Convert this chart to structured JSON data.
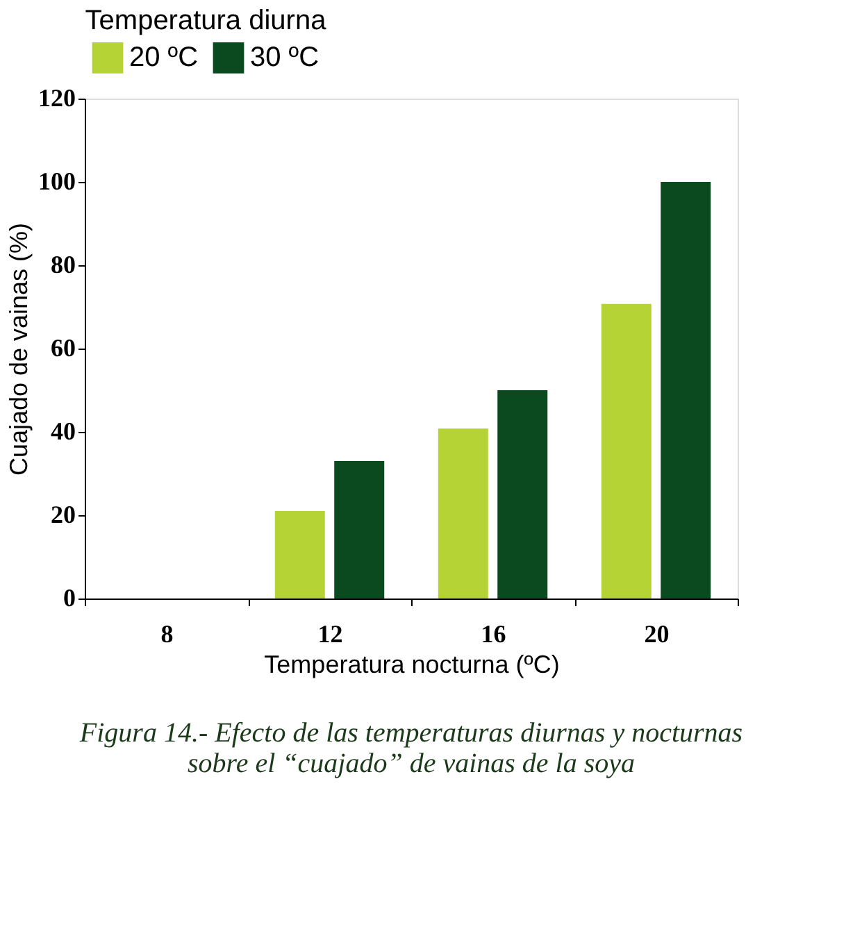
{
  "chart_data": {
    "type": "bar",
    "xlabel": "Temperatura nocturna (ºC)",
    "ylabel": "Cuajado de vainas (%)",
    "legend_title": "Temperatura diurna",
    "categories": [
      "8",
      "12",
      "16",
      "20"
    ],
    "series": [
      {
        "name": "20 ºC",
        "color": "#b5d334",
        "values": [
          null,
          21,
          40.8,
          70.7
        ]
      },
      {
        "name": "30 ºC",
        "color": "#0a4a1e",
        "values": [
          null,
          33,
          50,
          100
        ]
      }
    ],
    "ylim": [
      0,
      120
    ],
    "yticks": [
      0,
      20,
      40,
      60,
      80,
      100,
      120
    ],
    "grid": false,
    "legend": "top",
    "annotations": [
      "Figura 14.- Efecto de las temperaturas diurnas y nocturnas sobre el “cuajado” de vainas de la soya"
    ]
  }
}
